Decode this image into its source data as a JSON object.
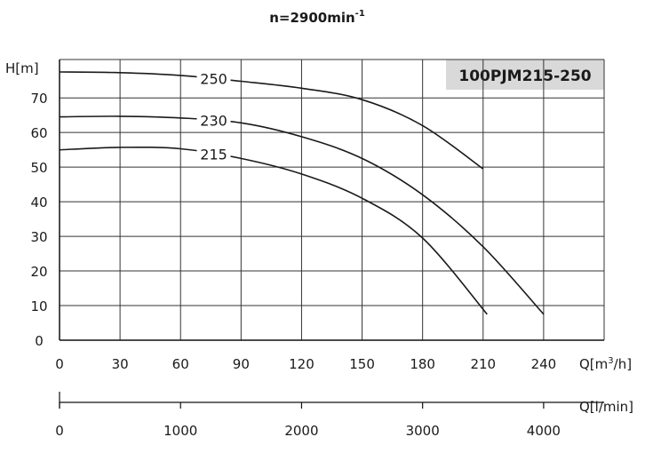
{
  "chart_data": {
    "type": "line",
    "title": "n=2900min",
    "title_sup": "-1",
    "model": "100PJM215-250",
    "ylabel": "H[m]",
    "xlabel_pre": "Q[m",
    "xlabel_sup": "3",
    "xlabel_post": "/h]",
    "x2label": "Q[l/min]",
    "xlim": [
      0,
      270
    ],
    "ylim": [
      0,
      78
    ],
    "x_ticks": [
      0,
      30,
      60,
      90,
      120,
      150,
      180,
      210,
      240
    ],
    "y_ticks": [
      0,
      10,
      20,
      30,
      40,
      50,
      60,
      70
    ],
    "x2_ticks": [
      0,
      1000,
      2000,
      3000,
      4000
    ],
    "grid": true,
    "series": [
      {
        "name": "250",
        "x": [
          0,
          30,
          60,
          90,
          120,
          150,
          180,
          210
        ],
        "y": [
          77.5,
          77.3,
          76.5,
          74.8,
          72.8,
          69.5,
          62,
          49.5
        ]
      },
      {
        "name": "230",
        "x": [
          0,
          30,
          60,
          90,
          120,
          150,
          180,
          210,
          240
        ],
        "y": [
          64.5,
          64.7,
          64.2,
          62.8,
          58.8,
          52.5,
          42,
          27,
          7.5
        ]
      },
      {
        "name": "215",
        "x": [
          0,
          30,
          60,
          90,
          120,
          150,
          180,
          212
        ],
        "y": [
          55,
          55.7,
          55.3,
          52.5,
          48,
          41,
          29.5,
          7.5
        ]
      }
    ],
    "curve_label_x": 76
  }
}
